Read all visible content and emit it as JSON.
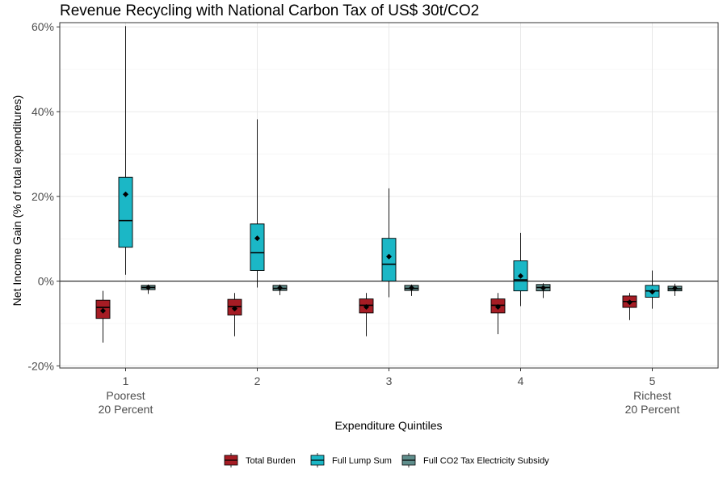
{
  "chart_data": {
    "type": "boxplot",
    "title": "Revenue Recycling with National Carbon Tax of US$ 30t/CO2",
    "xlabel": "Expenditure Quintiles",
    "ylabel": "Net Income Gain (% of total expenditures)",
    "ylim": [
      -20.5,
      61
    ],
    "y_ticks": [
      {
        "value": -20,
        "label": "-20%"
      },
      {
        "value": 0,
        "label": "0%"
      },
      {
        "value": 20,
        "label": "20%"
      },
      {
        "value": 40,
        "label": "40%"
      },
      {
        "value": 60,
        "label": "60%"
      }
    ],
    "categories": [
      {
        "label": "1",
        "sublabel1": "Poorest",
        "sublabel2": "20 Percent"
      },
      {
        "label": "2",
        "sublabel1": "",
        "sublabel2": ""
      },
      {
        "label": "3",
        "sublabel1": "",
        "sublabel2": ""
      },
      {
        "label": "4",
        "sublabel1": "",
        "sublabel2": ""
      },
      {
        "label": "5",
        "sublabel1": "Richest",
        "sublabel2": "20 Percent"
      }
    ],
    "reference_line": 0,
    "grid": true,
    "legend_position": "bottom",
    "series": [
      {
        "name": "Total Burden",
        "color": "#a61c24",
        "boxes": [
          {
            "whisker_low": -14.5,
            "q1": -8.8,
            "median": -6.2,
            "q3": -4.5,
            "whisker_high": -2.3,
            "mean": -7.0
          },
          {
            "whisker_low": -13.0,
            "q1": -8.0,
            "median": -6.0,
            "q3": -4.3,
            "whisker_high": -2.8,
            "mean": -6.5
          },
          {
            "whisker_low": -13.0,
            "q1": -7.5,
            "median": -5.7,
            "q3": -4.2,
            "whisker_high": -2.8,
            "mean": -6.1
          },
          {
            "whisker_low": -12.5,
            "q1": -7.5,
            "median": -5.7,
            "q3": -4.2,
            "whisker_high": -2.8,
            "mean": -6.1
          },
          {
            "whisker_low": -9.2,
            "q1": -6.2,
            "median": -4.8,
            "q3": -3.5,
            "whisker_high": -2.8,
            "mean": -5.0
          }
        ]
      },
      {
        "name": "Full Lump Sum",
        "color": "#1bb7c6",
        "boxes": [
          {
            "whisker_low": 1.5,
            "q1": 8.0,
            "median": 14.3,
            "q3": 24.5,
            "whisker_high": 60.2,
            "mean": 20.5
          },
          {
            "whisker_low": -1.5,
            "q1": 2.5,
            "median": 6.7,
            "q3": 13.5,
            "whisker_high": 38.2,
            "mean": 10.1
          },
          {
            "whisker_low": -3.8,
            "q1": 0.0,
            "median": 4.0,
            "q3": 10.1,
            "whisker_high": 21.9,
            "mean": 5.8
          },
          {
            "whisker_low": -5.9,
            "q1": -2.3,
            "median": 0.3,
            "q3": 4.8,
            "whisker_high": 11.4,
            "mean": 1.2
          },
          {
            "whisker_low": -6.5,
            "q1": -3.8,
            "median": -2.3,
            "q3": -1.0,
            "whisker_high": 2.5,
            "mean": -2.5
          }
        ]
      },
      {
        "name": "Full CO2 Tax Electricity Subsidy",
        "color": "#5f8e8c",
        "boxes": [
          {
            "whisker_low": -3.0,
            "q1": -2.0,
            "median": -1.5,
            "q3": -1.0,
            "whisker_high": -0.8,
            "mean": -1.5
          },
          {
            "whisker_low": -3.3,
            "q1": -2.2,
            "median": -1.7,
            "q3": -1.0,
            "whisker_high": -0.8,
            "mean": -1.6
          },
          {
            "whisker_low": -3.5,
            "q1": -2.2,
            "median": -1.7,
            "q3": -1.0,
            "whisker_high": -0.8,
            "mean": -1.6
          },
          {
            "whisker_low": -4.0,
            "q1": -2.3,
            "median": -1.5,
            "q3": -0.8,
            "whisker_high": -0.5,
            "mean": -1.6
          },
          {
            "whisker_low": -3.5,
            "q1": -2.3,
            "median": -1.8,
            "q3": -1.2,
            "whisker_high": -0.6,
            "mean": -1.7
          }
        ]
      }
    ]
  }
}
